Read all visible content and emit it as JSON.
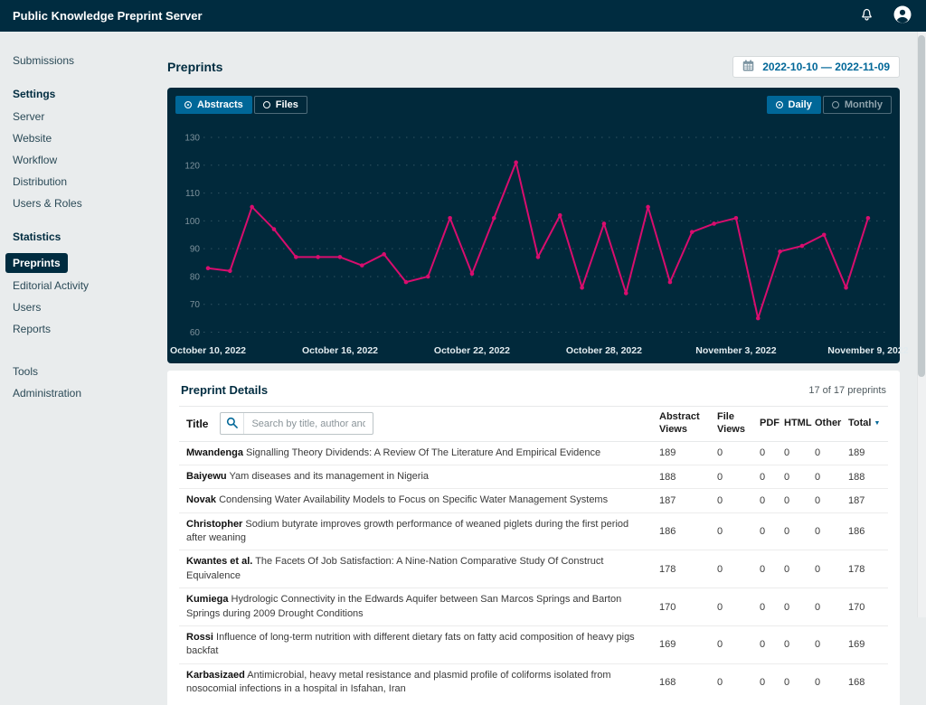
{
  "app": {
    "title": "Public Knowledge Preprint Server"
  },
  "topbar": {
    "icons": [
      "bell-icon",
      "user-icon"
    ]
  },
  "sidebar": {
    "items": [
      {
        "label": "Submissions",
        "kind": "link",
        "active": false
      },
      {
        "label": "Settings",
        "kind": "heading"
      },
      {
        "label": "Server",
        "kind": "link",
        "active": false
      },
      {
        "label": "Website",
        "kind": "link",
        "active": false
      },
      {
        "label": "Workflow",
        "kind": "link",
        "active": false
      },
      {
        "label": "Distribution",
        "kind": "link",
        "active": false
      },
      {
        "label": "Users & Roles",
        "kind": "link",
        "active": false
      },
      {
        "label": "Statistics",
        "kind": "heading"
      },
      {
        "label": "Preprints",
        "kind": "link",
        "active": true
      },
      {
        "label": "Editorial Activity",
        "kind": "link",
        "active": false
      },
      {
        "label": "Users",
        "kind": "link",
        "active": false
      },
      {
        "label": "Reports",
        "kind": "link",
        "active": false
      },
      {
        "label": "Tools",
        "kind": "link",
        "active": false
      },
      {
        "label": "Administration",
        "kind": "link",
        "active": false
      }
    ]
  },
  "page": {
    "title": "Preprints",
    "date_range_label": "2022-10-10 — 2022-11-09"
  },
  "chart_controls": {
    "dataset": [
      {
        "label": "Abstracts",
        "selected": true
      },
      {
        "label": "Files",
        "selected": false
      }
    ],
    "granularity": [
      {
        "label": "Daily",
        "selected": true
      },
      {
        "label": "Monthly",
        "selected": false
      }
    ]
  },
  "chart_data": {
    "type": "line",
    "series": [
      {
        "name": "Abstracts",
        "values": [
          83,
          82,
          105,
          97,
          87,
          87,
          87,
          84,
          88,
          78,
          80,
          101,
          81,
          101,
          121,
          87,
          102,
          76,
          99,
          74,
          105,
          78,
          96,
          99,
          101,
          65,
          89,
          91,
          95,
          76,
          101
        ]
      }
    ],
    "x_start": "2022-10-10",
    "x_end": "2022-11-09",
    "x_tick_labels": [
      "October 10, 2022",
      "October 16, 2022",
      "October 22, 2022",
      "October 28, 2022",
      "November  3, 2022",
      "November  9, 2022"
    ],
    "x_tick_indices": [
      0,
      6,
      12,
      18,
      24,
      30
    ],
    "y_ticks": [
      130,
      120,
      110,
      100,
      90,
      80,
      70,
      60
    ],
    "ylim": [
      60,
      130
    ],
    "grid": "dotted",
    "legend": "none",
    "line_color": "#d80d6e",
    "background_color": "#01293b"
  },
  "table": {
    "title": "Preprint Details",
    "count_label": "17 of 17 preprints",
    "search": {
      "label": "Title",
      "placeholder": "Search by title, author and ID"
    },
    "columns": [
      "Abstract Views",
      "File Views",
      "PDF",
      "HTML",
      "Other",
      "Total"
    ],
    "sort": {
      "column": "Total",
      "direction": "desc"
    },
    "rows": [
      {
        "author": "Mwandenga",
        "title": "Signalling Theory Dividends: A Review Of The Literature And Empirical Evidence",
        "abstract_views": "189",
        "file_views": "0",
        "pdf": "0",
        "html": "0",
        "other": "0",
        "total": "189"
      },
      {
        "author": "Baiyewu",
        "title": "Yam diseases and its management in Nigeria",
        "abstract_views": "188",
        "file_views": "0",
        "pdf": "0",
        "html": "0",
        "other": "0",
        "total": "188"
      },
      {
        "author": "Novak",
        "title": "Condensing Water Availability Models to Focus on Specific Water Management Systems",
        "abstract_views": "187",
        "file_views": "0",
        "pdf": "0",
        "html": "0",
        "other": "0",
        "total": "187"
      },
      {
        "author": "Christopher",
        "title": "Sodium butyrate improves growth performance of weaned piglets during the first period after weaning",
        "abstract_views": "186",
        "file_views": "0",
        "pdf": "0",
        "html": "0",
        "other": "0",
        "total": "186"
      },
      {
        "author": "Kwantes et al.",
        "title": "The Facets Of Job Satisfaction: A Nine-Nation Comparative Study Of Construct Equivalence",
        "abstract_views": "178",
        "file_views": "0",
        "pdf": "0",
        "html": "0",
        "other": "0",
        "total": "178"
      },
      {
        "author": "Kumiega",
        "title": "Hydrologic Connectivity in the Edwards Aquifer between San Marcos Springs and Barton Springs during 2009 Drought Conditions",
        "abstract_views": "170",
        "file_views": "0",
        "pdf": "0",
        "html": "0",
        "other": "0",
        "total": "170"
      },
      {
        "author": "Rossi",
        "title": "Influence of long-term nutrition with different dietary fats on fatty acid composition of heavy pigs backfat",
        "abstract_views": "169",
        "file_views": "0",
        "pdf": "0",
        "html": "0",
        "other": "0",
        "total": "169"
      },
      {
        "author": "Karbasizaed",
        "title": "Antimicrobial, heavy metal resistance and plasmid profile of coliforms isolated from nosocomial infections in a hospital in Isfahan, Iran",
        "abstract_views": "168",
        "file_views": "0",
        "pdf": "0",
        "html": "0",
        "other": "0",
        "total": "168"
      }
    ]
  },
  "colors": {
    "topbar_bg": "#002c40",
    "accent_blue": "#006798",
    "chart_bg": "#01293b",
    "chart_line": "#d80d6e",
    "page_bg": "#e9eced"
  }
}
